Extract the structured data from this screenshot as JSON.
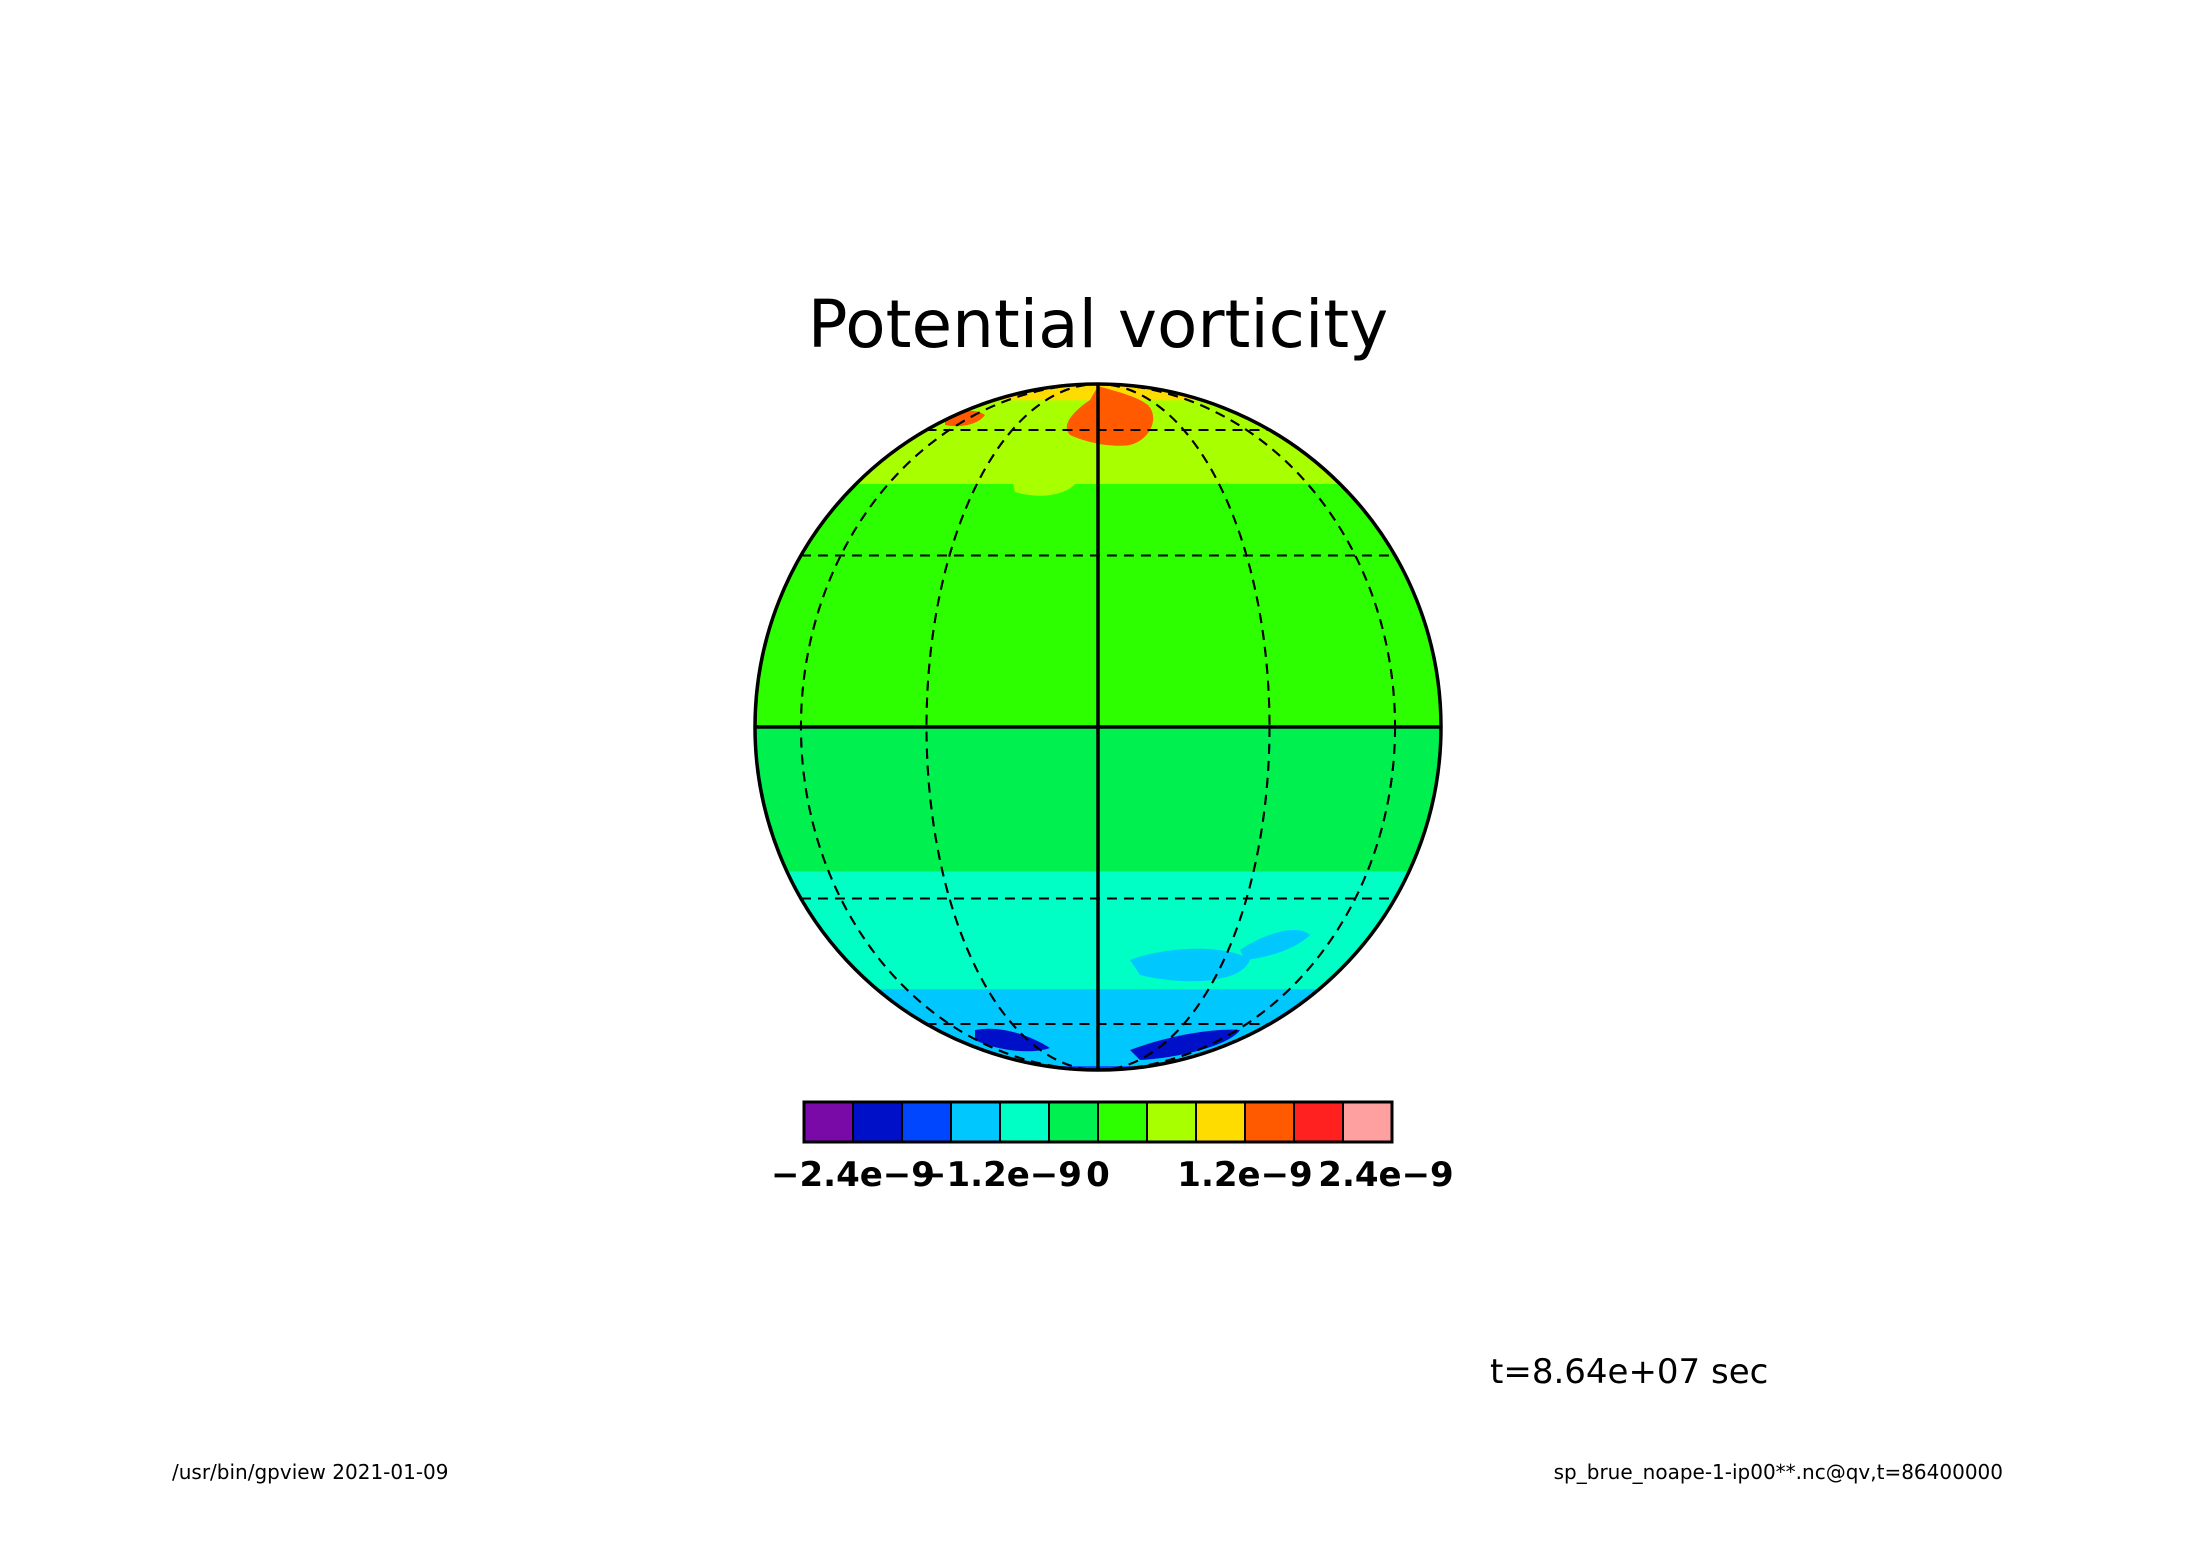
{
  "chart_data": {
    "type": "heatmap",
    "projection": "orthographic",
    "title": "Potential vorticity",
    "grid": true,
    "colorbar": {
      "placement": "bottom",
      "colors": [
        "#7a0aa8",
        "#0010c8",
        "#0046ff",
        "#00c8ff",
        "#00ffc4",
        "#00f050",
        "#2eff00",
        "#a8ff00",
        "#ffdc00",
        "#ff5a00",
        "#ff2020",
        "#ffa0a0"
      ],
      "tick_labels": [
        "-2.4e-9",
        "-1.2e-9",
        "0",
        "1.2e-9",
        "2.4e-9"
      ]
    },
    "bands": [
      {
        "lat_min": 72,
        "lat_max": 90,
        "color": "#ffdc00"
      },
      {
        "lat_min": 45,
        "lat_max": 72,
        "color": "#a8ff00"
      },
      {
        "lat_min": 0,
        "lat_max": 45,
        "color": "#2eff00"
      },
      {
        "lat_min": -25,
        "lat_max": 0,
        "color": "#00f050"
      },
      {
        "lat_min": -50,
        "lat_max": -25,
        "color": "#00ffc4"
      },
      {
        "lat_min": -82,
        "lat_max": -50,
        "color": "#00c8ff"
      },
      {
        "lat_min": -90,
        "lat_max": -82,
        "color": "#0046ff"
      }
    ],
    "time_label": "t=8.64e+07 sec"
  },
  "footer": {
    "left": "/usr/bin/gpview  2021-01-09",
    "right": "sp_brue_noape-1-ip00**.nc@qv,t=86400000"
  }
}
